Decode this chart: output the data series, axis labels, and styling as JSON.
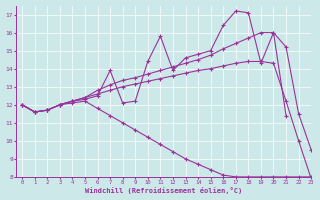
{
  "xlabel": "Windchill (Refroidissement éolien,°C)",
  "xlim": [
    -0.5,
    23
  ],
  "ylim": [
    8,
    17.5
  ],
  "xticks": [
    0,
    1,
    2,
    3,
    4,
    5,
    6,
    7,
    8,
    9,
    10,
    11,
    12,
    13,
    14,
    15,
    16,
    17,
    18,
    19,
    20,
    21,
    22,
    23
  ],
  "yticks": [
    8,
    9,
    10,
    11,
    12,
    13,
    14,
    15,
    16,
    17
  ],
  "background_color": "#cce8e8",
  "line_color": "#993399",
  "grid_color": "#ffffff",
  "lines": [
    {
      "x": [
        0,
        1,
        2,
        3,
        4,
        5,
        6,
        7,
        8,
        9,
        10,
        11,
        12,
        13,
        14,
        15,
        16,
        17,
        18,
        19,
        20,
        21
      ],
      "y": [
        12.0,
        11.6,
        11.7,
        12.0,
        12.2,
        12.3,
        12.5,
        13.9,
        12.1,
        12.2,
        14.4,
        15.8,
        13.9,
        14.6,
        14.8,
        15.0,
        16.4,
        17.2,
        17.1,
        14.3,
        16.0,
        11.4
      ]
    },
    {
      "x": [
        0,
        1,
        2,
        3,
        4,
        5,
        6,
        7,
        8,
        9,
        10,
        11,
        12,
        13,
        14,
        15,
        16,
        17,
        18,
        19,
        20,
        21,
        22,
        23
      ],
      "y": [
        12.0,
        11.6,
        11.7,
        12.0,
        12.2,
        12.4,
        12.8,
        13.1,
        13.35,
        13.5,
        13.7,
        13.9,
        14.1,
        14.3,
        14.5,
        14.75,
        15.1,
        15.4,
        15.7,
        16.0,
        16.0,
        15.2,
        11.5,
        9.5
      ]
    },
    {
      "x": [
        0,
        1,
        2,
        3,
        4,
        5,
        6,
        7,
        8,
        9,
        10,
        11,
        12,
        13,
        14,
        15,
        16,
        17,
        18,
        19,
        20,
        21,
        22,
        23
      ],
      "y": [
        12.0,
        11.6,
        11.7,
        12.0,
        12.2,
        12.4,
        12.6,
        12.8,
        13.0,
        13.15,
        13.3,
        13.45,
        13.6,
        13.75,
        13.9,
        14.0,
        14.15,
        14.3,
        14.4,
        14.4,
        14.3,
        12.2,
        10.0,
        7.9
      ]
    },
    {
      "x": [
        0,
        1,
        2,
        3,
        4,
        5,
        6,
        7,
        8,
        9,
        10,
        11,
        12,
        13,
        14,
        15,
        16,
        17,
        18,
        19,
        20,
        21,
        22,
        23
      ],
      "y": [
        12.0,
        11.6,
        11.7,
        12.0,
        12.1,
        12.2,
        11.8,
        11.4,
        11.0,
        10.6,
        10.2,
        9.8,
        9.4,
        9.0,
        8.7,
        8.4,
        8.1,
        8.0,
        8.0,
        8.0,
        8.0,
        8.0,
        8.0,
        8.0
      ]
    }
  ]
}
